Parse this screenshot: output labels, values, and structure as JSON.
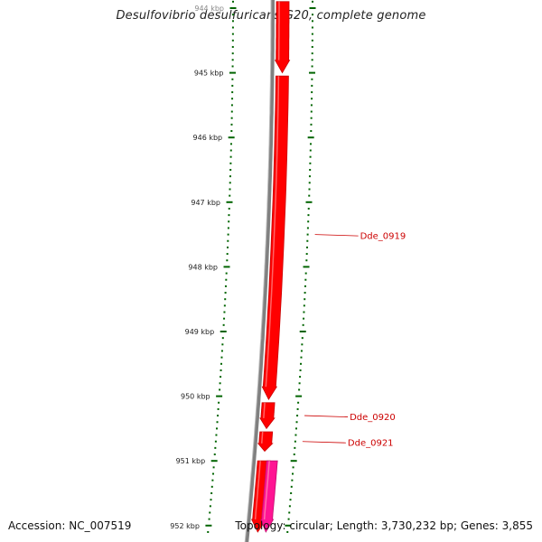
{
  "header": {
    "title": "Desulfovibrio desulfuricans G20, complete genome"
  },
  "footer": {
    "accession": "Accession: NC_007519",
    "summary": "Topology: circular; Length: 3,730,232 bp; Genes: 3,855"
  },
  "colors": {
    "background": "#ffffff",
    "backbone": "#808080",
    "forward_gene": "#ff0000",
    "forward_gene_dark": "#c80000",
    "reverse_gene": "#ff1493",
    "tick": "#006400",
    "gene_label": "#cc0000"
  },
  "axis": {
    "unit": "kbp",
    "major_ticks": [
      {
        "pos": 944,
        "label": "944 kbp"
      },
      {
        "pos": 945,
        "label": "945 kbp"
      },
      {
        "pos": 946,
        "label": "946 kbp"
      },
      {
        "pos": 947,
        "label": "947 kbp"
      },
      {
        "pos": 948,
        "label": "948 kbp"
      },
      {
        "pos": 949,
        "label": "949 kbp"
      },
      {
        "pos": 950,
        "label": "950 kbp"
      },
      {
        "pos": 951,
        "label": "951 kbp"
      },
      {
        "pos": 952,
        "label": "952 kbp"
      }
    ],
    "visible_range_kbp": [
      943.9,
      952.1
    ]
  },
  "genes": [
    {
      "name": "",
      "start_kbp": 943.9,
      "end_kbp": 945.0,
      "strand": "+"
    },
    {
      "name": "Dde_0919",
      "start_kbp": 945.05,
      "end_kbp": 950.05,
      "strand": "+"
    },
    {
      "name": "Dde_0920",
      "start_kbp": 950.1,
      "end_kbp": 950.5,
      "strand": "+"
    },
    {
      "name": "Dde_0921",
      "start_kbp": 950.55,
      "end_kbp": 950.85,
      "strand": "+"
    },
    {
      "name": "",
      "start_kbp": 951.0,
      "end_kbp": 952.1,
      "strand": "+"
    },
    {
      "name": "",
      "start_kbp": 951.0,
      "end_kbp": 952.1,
      "strand": "-"
    }
  ]
}
